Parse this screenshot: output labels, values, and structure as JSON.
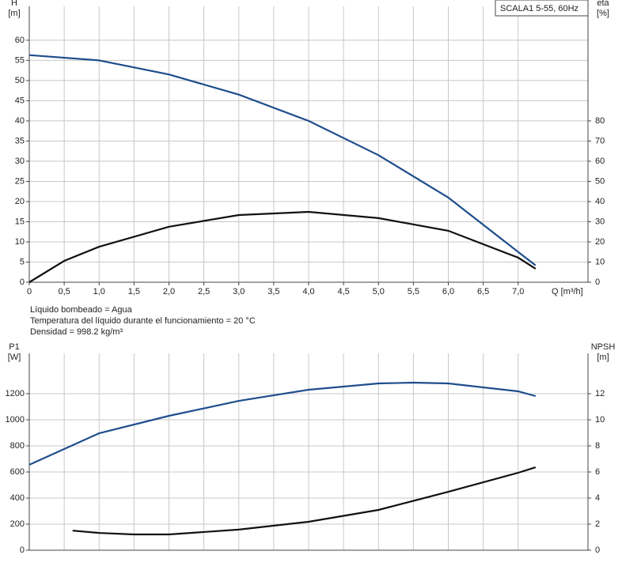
{
  "chart_data": [
    {
      "type": "line",
      "legend_box": "SCALA1 5-55, 60Hz",
      "ylabel": "H",
      "yunit": "[m]",
      "y2label": "eta",
      "y2unit": "[%]",
      "xlabel": "Q [m³/h]",
      "xlim": [
        0,
        8.0
      ],
      "xticks": [
        0,
        {
          "value": 0.5,
          "label": "0,5"
        },
        {
          "value": 1,
          "label": "1,0"
        },
        {
          "value": 1.5,
          "label": "1,5"
        },
        {
          "value": 2,
          "label": "2,0"
        },
        {
          "value": 2.5,
          "label": "2,5"
        },
        {
          "value": 3,
          "label": "3,0"
        },
        {
          "value": 3.5,
          "label": "3,5"
        },
        {
          "value": 4,
          "label": "4,0"
        },
        {
          "value": 4.5,
          "label": "4,5"
        },
        {
          "value": 5,
          "label": "5,0"
        },
        {
          "value": 5.5,
          "label": "5,5"
        },
        {
          "value": 6,
          "label": "6,0"
        },
        {
          "value": 6.5,
          "label": "6,5"
        },
        {
          "value": 7,
          "label": "7,0"
        }
      ],
      "ylim": [
        0,
        68.4
      ],
      "yticks": [
        0,
        5,
        10,
        15,
        20,
        25,
        30,
        35,
        40,
        45,
        50,
        55,
        60
      ],
      "y2lim": [
        0,
        136.8
      ],
      "y2ticks": [
        0,
        10,
        20,
        30,
        40,
        50,
        60,
        70,
        80
      ],
      "grid": true,
      "series": [
        {
          "color": "#1f4e8c",
          "axis": "y",
          "x": [
            0,
            1,
            2,
            3,
            4,
            5,
            6,
            7,
            7.25
          ],
          "values": [
            56.3,
            55,
            51.5,
            46.5,
            40,
            31.5,
            21,
            7.5,
            4.2
          ]
        },
        {
          "color": "#111111",
          "axis": "y2",
          "x": [
            0,
            0.5,
            1,
            2,
            3,
            4,
            5,
            6,
            7,
            7.25
          ],
          "values": [
            0,
            10.6,
            17.6,
            27.5,
            33.3,
            34.9,
            31.8,
            25.5,
            12.2,
            6.7
          ]
        }
      ],
      "notes": [
        "Líquido bombeado = Agua",
        "Temperatura del líquido durante el funcionamiento = 20 °C",
        "Densidad = 998.2 kg/m³"
      ]
    },
    {
      "type": "line",
      "ylabel": "P1",
      "yunit": "[W]",
      "y2label": "NPSH",
      "y2unit": "[m]",
      "xlim": [
        0,
        8.0
      ],
      "ylim": [
        0,
        1509
      ],
      "yticks": [
        0,
        200,
        400,
        600,
        800,
        1000,
        1200
      ],
      "y2lim": [
        0,
        15.09
      ],
      "y2ticks": [
        0,
        2,
        4,
        6,
        8,
        10,
        12
      ],
      "grid": true,
      "series": [
        {
          "color": "#1f4e8c",
          "axis": "y",
          "x": [
            0,
            1,
            2,
            3,
            4,
            5,
            5.5,
            6,
            7,
            7.25
          ],
          "values": [
            655,
            897,
            1030,
            1145,
            1230,
            1279,
            1285,
            1279,
            1218,
            1182
          ]
        },
        {
          "color": "#111111",
          "axis": "y2",
          "x": [
            0.62,
            1,
            1.5,
            2,
            3,
            4,
            5,
            6,
            7,
            7.25
          ],
          "values": [
            1.5,
            1.33,
            1.21,
            1.21,
            1.58,
            2.18,
            3.09,
            4.48,
            5.94,
            6.36
          ]
        }
      ]
    }
  ]
}
